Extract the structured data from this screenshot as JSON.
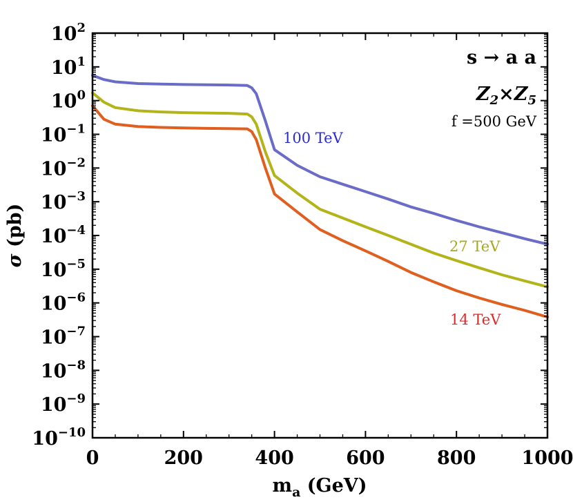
{
  "chart_data": {
    "type": "line",
    "title": "",
    "xlabel_main": "m",
    "xlabel_sub": "a",
    "xlabel_unit": " (GeV)",
    "ylabel_symbol": "σ",
    "ylabel_unit": " (pb)",
    "xlim": [
      0,
      1000
    ],
    "ylim_log10": [
      -10,
      2
    ],
    "y_scale": "log",
    "x_ticks": [
      0,
      200,
      400,
      600,
      800,
      1000
    ],
    "x_tick_labels": [
      "0",
      "200",
      "400",
      "600",
      "800",
      "1000"
    ],
    "y_tick_exponents": [
      2,
      1,
      0,
      -1,
      -2,
      -3,
      -4,
      -5,
      -6,
      -7,
      -8,
      -9,
      -10
    ],
    "y_tick_labels": [
      {
        "base": "10",
        "exp": "2"
      },
      {
        "base": "10",
        "exp": "1"
      },
      {
        "base": "10",
        "exp": "0"
      },
      {
        "base": "10",
        "exp": "−1"
      },
      {
        "base": "10",
        "exp": "−2"
      },
      {
        "base": "10",
        "exp": "−3"
      },
      {
        "base": "10",
        "exp": "−4"
      },
      {
        "base": "10",
        "exp": "−5"
      },
      {
        "base": "10",
        "exp": "−6"
      },
      {
        "base": "10",
        "exp": "−7"
      },
      {
        "base": "10",
        "exp": "−8"
      },
      {
        "base": "10",
        "exp": "−9"
      },
      {
        "base": "10",
        "exp": "−10"
      }
    ],
    "annotations": {
      "process": "s → a a",
      "symmetry_a": "Z",
      "symmetry_a_sub": "2",
      "symmetry_times": "×",
      "symmetry_b": "Z",
      "symmetry_b_sub": "5",
      "scale": "f =500 GeV"
    },
    "series": [
      {
        "name": "100 TeV",
        "color": "#6b6bc8",
        "label_color": "#2b2bd0",
        "points": [
          [
            0,
            5.6
          ],
          [
            25,
            4.2
          ],
          [
            50,
            3.6
          ],
          [
            100,
            3.2
          ],
          [
            150,
            3.1
          ],
          [
            200,
            3.0
          ],
          [
            250,
            2.95
          ],
          [
            300,
            2.9
          ],
          [
            340,
            2.8
          ],
          [
            350,
            2.4
          ],
          [
            360,
            1.6
          ],
          [
            380,
            0.25
          ],
          [
            400,
            0.035
          ],
          [
            450,
            0.012
          ],
          [
            500,
            0.0055
          ],
          [
            550,
            0.0033
          ],
          [
            600,
            0.002
          ],
          [
            650,
            0.0012
          ],
          [
            700,
            0.0007
          ],
          [
            750,
            0.00045
          ],
          [
            800,
            0.00028
          ],
          [
            850,
            0.00018
          ],
          [
            900,
            0.00012
          ],
          [
            950,
            8e-05
          ],
          [
            1000,
            5.5e-05
          ]
        ]
      },
      {
        "name": "27 TeV",
        "color": "#b3b31a",
        "label_color": "#a8a81c",
        "points": [
          [
            0,
            1.7
          ],
          [
            25,
            0.9
          ],
          [
            50,
            0.62
          ],
          [
            100,
            0.5
          ],
          [
            150,
            0.46
          ],
          [
            200,
            0.44
          ],
          [
            250,
            0.43
          ],
          [
            300,
            0.42
          ],
          [
            340,
            0.4
          ],
          [
            350,
            0.33
          ],
          [
            360,
            0.2
          ],
          [
            380,
            0.03
          ],
          [
            400,
            0.006
          ],
          [
            450,
            0.0018
          ],
          [
            500,
            0.0006
          ],
          [
            550,
            0.00033
          ],
          [
            600,
            0.00018
          ],
          [
            650,
            0.0001
          ],
          [
            700,
            5.5e-05
          ],
          [
            750,
            3e-05
          ],
          [
            800,
            1.8e-05
          ],
          [
            850,
            1.1e-05
          ],
          [
            900,
            6.8e-06
          ],
          [
            950,
            4.5e-06
          ],
          [
            1000,
            3e-06
          ]
        ]
      },
      {
        "name": "14 TeV",
        "color": "#e05f1f",
        "label_color": "#e02828",
        "points": [
          [
            0,
            0.7
          ],
          [
            25,
            0.28
          ],
          [
            50,
            0.2
          ],
          [
            100,
            0.17
          ],
          [
            150,
            0.16
          ],
          [
            200,
            0.155
          ],
          [
            250,
            0.15
          ],
          [
            300,
            0.148
          ],
          [
            340,
            0.145
          ],
          [
            350,
            0.12
          ],
          [
            360,
            0.07
          ],
          [
            380,
            0.01
          ],
          [
            400,
            0.0017
          ],
          [
            450,
            0.0005
          ],
          [
            500,
            0.00015
          ],
          [
            550,
            7e-05
          ],
          [
            600,
            3.5e-05
          ],
          [
            650,
            1.7e-05
          ],
          [
            700,
            8e-06
          ],
          [
            750,
            4.2e-06
          ],
          [
            800,
            2.3e-06
          ],
          [
            850,
            1.4e-06
          ],
          [
            900,
            9e-07
          ],
          [
            950,
            6e-07
          ],
          [
            1000,
            3.8e-07
          ]
        ]
      }
    ]
  }
}
